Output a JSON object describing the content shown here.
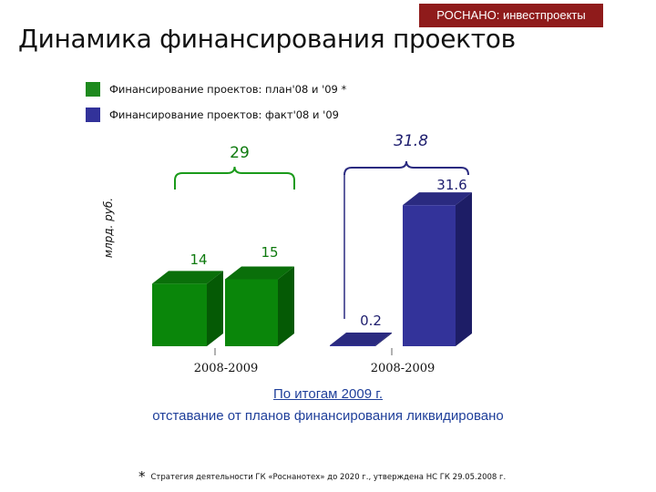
{
  "header": {
    "badge": "РОСНАНО: инвестпроекты",
    "title": "Динамика финансирования проектов"
  },
  "legend": [
    {
      "label": "Финансирование проектов: план'08 и '09 *",
      "color": "#1e8a1e"
    },
    {
      "label": "Финансирование проектов: факт'08 и '09",
      "color": "#32329a"
    }
  ],
  "chart_data": {
    "type": "bar",
    "ylabel": "млрд. руб.",
    "groups": [
      {
        "category": "2008-2009",
        "series": "plan",
        "total_label": "29",
        "bars": [
          {
            "value": 14,
            "label": "14"
          },
          {
            "value": 15,
            "label": "15"
          }
        ]
      },
      {
        "category": "2008-2009",
        "series": "fact",
        "total_label": "31.8",
        "bars": [
          {
            "value": 0.2,
            "label": "0.2"
          },
          {
            "value": 31.6,
            "label": "31.6"
          }
        ]
      }
    ],
    "colors": {
      "plan": {
        "front": "#0a860a",
        "side": "#055a05",
        "top": "#0a6f0a",
        "label": "#0e7a0e"
      },
      "fact": {
        "front": "#33339a",
        "side": "#1d1d66",
        "top": "#2a2a80",
        "label": "#1e1e6e"
      }
    },
    "grid": false
  },
  "conclusion": {
    "line1": "По итогам 2009 г.",
    "line2": "отставание от планов финансирования ликвидировано"
  },
  "footnote": {
    "marker": "*",
    "text": "Стратегия деятельности ГК «Роснанотех» до 2020 г., утверждена НС ГК 29.05.2008 г."
  }
}
